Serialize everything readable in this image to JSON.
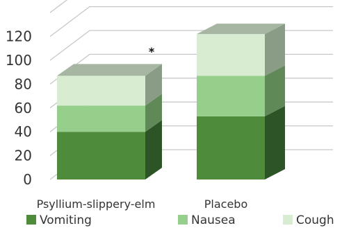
{
  "chart_data": {
    "type": "bar",
    "stacked": true,
    "three_d": true,
    "categories": [
      "Psyllium-slippery-elm",
      "Placebo"
    ],
    "series": [
      {
        "name": "Vomiting",
        "values": [
          40,
          53
        ],
        "color": "#4e8b3a",
        "side_color": "#2c5426",
        "top_color": "#3c6e30"
      },
      {
        "name": "Nausea",
        "values": [
          22,
          34
        ],
        "color": "#95cf8b",
        "side_color": "#5f8a57",
        "top_color": "#7aab71"
      },
      {
        "name": "Cough",
        "values": [
          25,
          35
        ],
        "color": "#d7ecd1",
        "side_color": "#8a9b86",
        "top_color": "#a7b6a3"
      }
    ],
    "ylim": [
      0,
      140
    ],
    "yticks": [
      "0",
      "20",
      "40",
      "60",
      "80",
      "100",
      "120"
    ],
    "grid": true,
    "legend_position": "bottom",
    "annotations": [
      {
        "category": "Psyllium-slippery-elm",
        "text": "*"
      }
    ],
    "title": "",
    "xlabel": "",
    "ylabel": ""
  }
}
